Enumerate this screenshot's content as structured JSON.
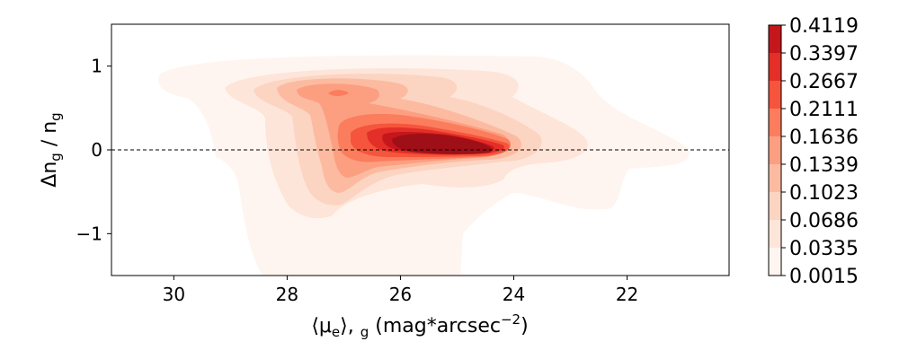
{
  "chart_data": {
    "type": "contour",
    "xlabel": {
      "pre": "⟨μ",
      "sub1": "e",
      "mid": "⟩, ",
      "sub2": "g",
      "post": " (mag*arcsec",
      "sup": "−2",
      "end": ")"
    },
    "ylabel": {
      "pre": "Δn",
      "sub1": "g",
      "mid": " / n",
      "sub2": "g"
    },
    "x_inverted": true,
    "xlim": [
      31.1,
      20.2
    ],
    "ylim": [
      -1.5,
      1.5
    ],
    "x_ticks": [
      {
        "v": 30,
        "label": "30"
      },
      {
        "v": 28,
        "label": "28"
      },
      {
        "v": 26,
        "label": "26"
      },
      {
        "v": 24,
        "label": "24"
      },
      {
        "v": 22,
        "label": "22"
      }
    ],
    "y_ticks": [
      {
        "v": 1,
        "label": "1"
      },
      {
        "v": 0,
        "label": "0"
      },
      {
        "v": -1,
        "label": "−1"
      }
    ],
    "reference_line": {
      "y": 0,
      "style": "dashed"
    },
    "peak": {
      "x": 25.3,
      "y": 0.07
    },
    "levels": [
      {
        "value": "0.0015",
        "color": "#fff5f0"
      },
      {
        "value": "0.0335",
        "color": "#fee5d9"
      },
      {
        "value": "0.0686",
        "color": "#fcd4c2"
      },
      {
        "value": "0.1023",
        "color": "#fcbba1"
      },
      {
        "value": "0.1339",
        "color": "#fc9f81"
      },
      {
        "value": "0.1636",
        "color": "#fb7d5d"
      },
      {
        "value": "0.2111",
        "color": "#f5553c"
      },
      {
        "value": "0.2667",
        "color": "#e32f27"
      },
      {
        "value": "0.3397",
        "color": "#c5161c"
      },
      {
        "value": "0.4119",
        "color": "#9f0f17"
      }
    ]
  }
}
